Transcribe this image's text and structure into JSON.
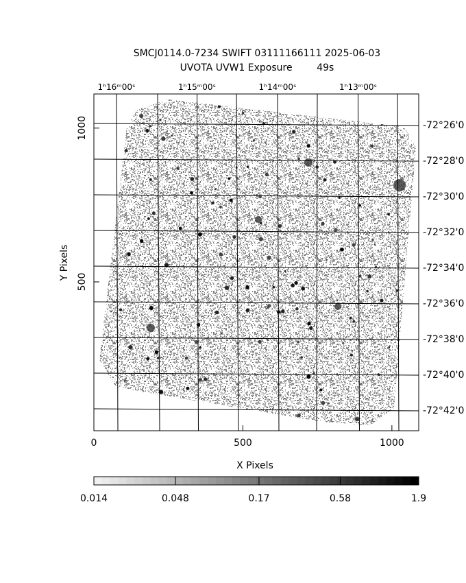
{
  "chart_data": {
    "type": "image",
    "title": "SMCJ0114.0-7234 SWIFT 03111166111 2025-06-03",
    "subtitle": "UVOTA UVW1 Exposure        49s",
    "x_label": "X Pixels",
    "y_label": "Y Pixels",
    "xlim": [
      0,
      1090
    ],
    "xticks": [
      0,
      500,
      1000
    ],
    "ylim": [
      16,
      1111
    ],
    "yticks": [
      500,
      1000
    ],
    "ra_labels": [
      "1ʰ16ᵐ00ˢ",
      "1ʰ15ᵐ00ˢ",
      "1ʰ14ᵐ00ˢ",
      "1ʰ13ᵐ00ˢ"
    ],
    "dec_labels": [
      "-72°26'0",
      "-72°28'0",
      "-72°30'0",
      "-72°32'0",
      "-72°34'0",
      "-72°36'0",
      "-72°38'0",
      "-72°40'0",
      "-72°42'0"
    ],
    "colorbar": {
      "scale": "log",
      "lim": [
        0.014,
        1.9
      ],
      "ticks": [
        0.014,
        0.048,
        0.17,
        0.58,
        1.9
      ]
    }
  }
}
